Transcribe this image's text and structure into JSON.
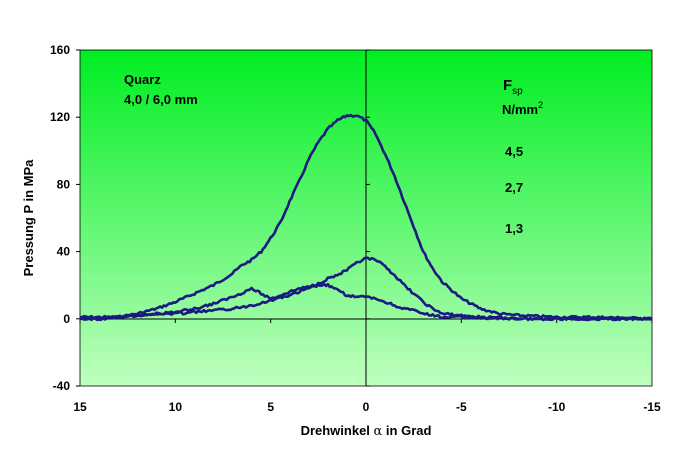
{
  "chart_data": {
    "type": "line",
    "title": "",
    "xlabel_prefix": "Drehwinkel ",
    "xlabel_symbol": "α",
    "xlabel_suffix": " in Grad",
    "ylabel": "Pressung P in MPa",
    "xlim": [
      15,
      -15
    ],
    "ylim": [
      -40,
      160
    ],
    "x_reversed": true,
    "x_ticks": [
      15,
      10,
      5,
      0,
      -5,
      -10,
      -15
    ],
    "x_tick_labels": [
      "15",
      "10",
      "5",
      "0",
      "-5",
      "-10",
      "-15"
    ],
    "y_ticks": [
      -40,
      0,
      40,
      80,
      120,
      160
    ],
    "y_tick_labels": [
      "-40",
      "0",
      "40",
      "80",
      "120",
      "160"
    ],
    "grid": false,
    "background_gradient": [
      "#00ee22",
      "#bfffbf"
    ],
    "line_color": "#1a1a80",
    "annotation": {
      "material": "Quarz",
      "dimensions": "4,0 / 6,0 mm"
    },
    "legend": {
      "title_main": "F",
      "title_sub": "sp",
      "unit_main": "N/mm",
      "unit_sup": "2",
      "entries": [
        "4,5",
        "2,7",
        "1,3"
      ]
    },
    "series": [
      {
        "x": [
          15,
          14,
          13,
          12,
          11,
          10,
          9,
          8,
          7,
          6.5,
          6,
          5.5,
          5,
          4.5,
          4,
          3.5,
          3,
          2.5,
          2,
          1.5,
          1,
          0.5,
          0,
          -0.5,
          -1,
          -1.5,
          -2,
          -2.5,
          -3,
          -3.5,
          -4,
          -5,
          -6,
          -7,
          -8,
          -10,
          -12,
          -15
        ],
        "values": [
          1,
          1,
          1,
          3,
          6,
          10,
          15,
          20,
          27,
          32,
          35,
          40,
          48,
          57,
          70,
          82,
          95,
          105,
          113,
          118,
          121,
          121,
          118,
          110,
          98,
          85,
          70,
          55,
          40,
          30,
          22,
          12,
          6,
          3,
          2,
          1,
          1,
          0
        ]
      },
      {
        "x": [
          15,
          14,
          13,
          12,
          11,
          10,
          9,
          8,
          7,
          6,
          5.5,
          5,
          4.5,
          4,
          3.5,
          3,
          2.5,
          2,
          1.5,
          1,
          0.5,
          0,
          -0.5,
          -1,
          -1.5,
          -2,
          -2.5,
          -3,
          -3.5,
          -4,
          -5,
          -6,
          -8,
          -10,
          -15
        ],
        "values": [
          0,
          0,
          1,
          2,
          3,
          4,
          6,
          9,
          13,
          18,
          15,
          12,
          14,
          16,
          18,
          19,
          21,
          24,
          26,
          29,
          33,
          36,
          35,
          31,
          26,
          20,
          15,
          10,
          6,
          3,
          2,
          1,
          0,
          0,
          0
        ]
      },
      {
        "x": [
          15,
          14,
          13,
          12,
          11,
          10,
          9,
          8,
          7,
          6,
          5,
          4,
          3.5,
          3,
          2.5,
          2,
          1.5,
          1,
          0.5,
          0,
          -0.5,
          -1,
          -1.5,
          -2,
          -2.5,
          -3,
          -3.5,
          -4,
          -5,
          -8,
          -15
        ],
        "values": [
          0,
          0,
          1,
          2,
          3,
          3,
          4,
          5,
          6,
          8,
          11,
          14,
          16,
          18,
          20,
          20,
          17,
          14,
          13,
          13,
          12,
          10,
          8,
          6,
          5,
          3,
          2,
          1,
          1,
          0,
          0
        ]
      }
    ]
  }
}
